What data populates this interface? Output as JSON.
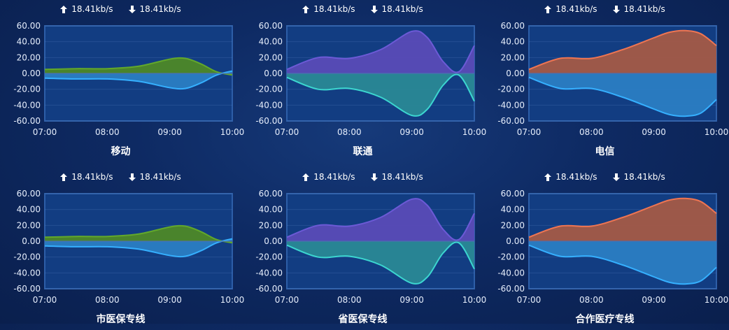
{
  "header": {
    "upload_rate": "18.41kb/s",
    "download_rate": "18.41kb/s"
  },
  "colors": {
    "green_fill": "#4f8a25",
    "green_line": "#62a82b",
    "purple_fill": "#5b4bb8",
    "purple_line": "#6c5ad6",
    "orange_fill": "#a85a44",
    "orange_line": "#ef7552",
    "blue_fill": "#2b7fc4",
    "blue_line": "#35b0ff",
    "teal_fill": "#2a8a96",
    "teal_line": "#3cd6d0",
    "plot_bg": "#123d82",
    "plot_border": "#2d5ea8"
  },
  "chart_data": [
    {
      "type": "area",
      "title": "移动",
      "x": [
        "07:00",
        "07:30",
        "08:00",
        "08:30",
        "09:00",
        "09:15",
        "09:30",
        "09:45",
        "10:00"
      ],
      "xticks": [
        "07:00",
        "08:00",
        "09:00",
        "10:00"
      ],
      "ylim": [
        -60,
        60
      ],
      "yticks": [
        "60.00",
        "40.00",
        "20.00",
        "0.00",
        "-20.00",
        "-40.00",
        "-60.00"
      ],
      "grid": true,
      "upper_color": "green",
      "lower_color": "blue",
      "series": [
        {
          "values": [
            5,
            6,
            6,
            9,
            18,
            19,
            12,
            2,
            -2
          ]
        },
        {
          "values": [
            -6,
            -7,
            -7,
            -10,
            -18,
            -19,
            -12,
            -2,
            3
          ]
        }
      ]
    },
    {
      "type": "area",
      "title": "联通",
      "x": [
        "07:00",
        "07:30",
        "08:00",
        "08:30",
        "09:00",
        "09:15",
        "09:30",
        "09:45",
        "10:00"
      ],
      "xticks": [
        "07:00",
        "08:00",
        "09:00",
        "10:00"
      ],
      "ylim": [
        -60,
        60
      ],
      "yticks": [
        "60.00",
        "40.00",
        "20.00",
        "0.00",
        "-20.00",
        "-40.00",
        "-60.00"
      ],
      "grid": true,
      "upper_color": "purple",
      "lower_color": "teal",
      "series": [
        {
          "values": [
            5,
            20,
            19,
            30,
            53,
            45,
            15,
            2,
            35
          ]
        },
        {
          "values": [
            -5,
            -20,
            -19,
            -30,
            -53,
            -45,
            -15,
            -2,
            -35
          ]
        }
      ]
    },
    {
      "type": "area",
      "title": "电信",
      "x": [
        "07:00",
        "07:30",
        "08:00",
        "08:30",
        "09:00",
        "09:15",
        "09:30",
        "09:45",
        "10:00"
      ],
      "xticks": [
        "07:00",
        "08:00",
        "09:00",
        "10:00"
      ],
      "ylim": [
        -60,
        60
      ],
      "yticks": [
        "60.00",
        "40.00",
        "20.00",
        "0.00",
        "-20.00",
        "-40.00",
        "-60.00"
      ],
      "grid": true,
      "upper_color": "orange",
      "lower_color": "blue",
      "series": [
        {
          "values": [
            5,
            19,
            19,
            30,
            45,
            52,
            54,
            50,
            35
          ]
        },
        {
          "values": [
            -5,
            -19,
            -19,
            -30,
            -45,
            -52,
            -54,
            -50,
            -33
          ]
        }
      ]
    },
    {
      "type": "area",
      "title": "市医保专线",
      "x": [
        "07:00",
        "07:30",
        "08:00",
        "08:30",
        "09:00",
        "09:15",
        "09:30",
        "09:45",
        "10:00"
      ],
      "xticks": [
        "07:00",
        "08:00",
        "09:00",
        "10:00"
      ],
      "ylim": [
        -60,
        60
      ],
      "yticks": [
        "60.00",
        "40.00",
        "20.00",
        "0.00",
        "-20.00",
        "-40.00",
        "-60.00"
      ],
      "grid": true,
      "upper_color": "green",
      "lower_color": "blue",
      "series": [
        {
          "values": [
            5,
            6,
            6,
            9,
            18,
            19,
            12,
            2,
            -2
          ]
        },
        {
          "values": [
            -6,
            -7,
            -7,
            -10,
            -18,
            -19,
            -12,
            -2,
            3
          ]
        }
      ]
    },
    {
      "type": "area",
      "title": "省医保专线",
      "x": [
        "07:00",
        "07:30",
        "08:00",
        "08:30",
        "09:00",
        "09:15",
        "09:30",
        "09:45",
        "10:00"
      ],
      "xticks": [
        "07:00",
        "08:00",
        "09:00",
        "10:00"
      ],
      "ylim": [
        -60,
        60
      ],
      "yticks": [
        "60.00",
        "40.00",
        "20.00",
        "0.00",
        "-20.00",
        "-40.00",
        "-60.00"
      ],
      "grid": true,
      "upper_color": "purple",
      "lower_color": "teal",
      "series": [
        {
          "values": [
            5,
            20,
            19,
            30,
            53,
            45,
            15,
            2,
            35
          ]
        },
        {
          "values": [
            -5,
            -20,
            -19,
            -30,
            -53,
            -45,
            -15,
            -2,
            -35
          ]
        }
      ]
    },
    {
      "type": "area",
      "title": "合作医疗专线",
      "x": [
        "07:00",
        "07:30",
        "08:00",
        "08:30",
        "09:00",
        "09:15",
        "09:30",
        "09:45",
        "10:00"
      ],
      "xticks": [
        "07:00",
        "08:00",
        "09:00",
        "10:00"
      ],
      "ylim": [
        -60,
        60
      ],
      "yticks": [
        "60.00",
        "40.00",
        "20.00",
        "0.00",
        "-20.00",
        "-40.00",
        "-60.00"
      ],
      "grid": true,
      "upper_color": "orange",
      "lower_color": "blue",
      "series": [
        {
          "values": [
            5,
            19,
            19,
            30,
            45,
            52,
            54,
            50,
            35
          ]
        },
        {
          "values": [
            -5,
            -19,
            -19,
            -30,
            -45,
            -52,
            -54,
            -50,
            -33
          ]
        }
      ]
    }
  ]
}
